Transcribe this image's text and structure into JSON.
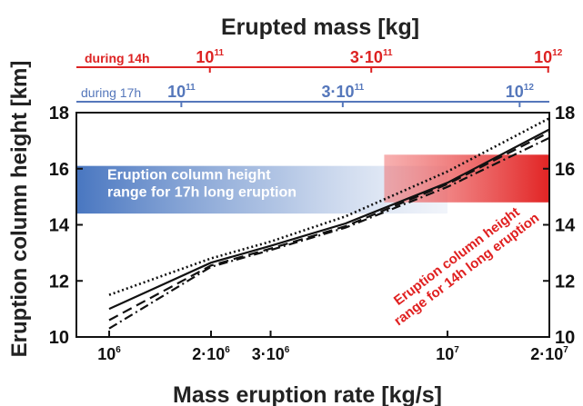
{
  "chart_data": {
    "type": "line",
    "title": "Erupted mass [kg]",
    "xlabel": "Mass eruption rate [kg/s]",
    "ylabel": "Eruption column height [km]",
    "x_scale": "log",
    "xlim": [
      800000,
      20000000
    ],
    "ylim": [
      10,
      18
    ],
    "grid": false,
    "yticks": [
      "10",
      "12",
      "14",
      "16",
      "18"
    ],
    "xticks": [
      {
        "value": 1000000,
        "base": "10",
        "exp": "6"
      },
      {
        "value": 2000000,
        "base": "2·10",
        "exp": "6"
      },
      {
        "value": 3000000,
        "base": "3·10",
        "exp": "6"
      },
      {
        "value": 10000000,
        "base": "10",
        "exp": "7"
      },
      {
        "value": 20000000,
        "base": "2·10",
        "exp": "7"
      }
    ],
    "top_axes": [
      {
        "label": "during 14h",
        "color": "#dd2222",
        "ticks": [
          {
            "value": 1984127,
            "base": "10",
            "exp": "11"
          },
          {
            "value": 5952381,
            "base": "3·10",
            "exp": "11"
          },
          {
            "value": 19841270,
            "base": "10",
            "exp": "12"
          }
        ]
      },
      {
        "label": "during 17h",
        "color": "#5577bb",
        "ticks": [
          {
            "value": 1633987,
            "base": "10",
            "exp": "11"
          },
          {
            "value": 4901961,
            "base": "3·10",
            "exp": "11"
          },
          {
            "value": 16339869,
            "base": "10",
            "exp": "12"
          }
        ]
      }
    ],
    "bands": [
      {
        "label_lines": [
          "Eruption column height",
          "range for 17h long eruption"
        ],
        "color": "#4a78c0",
        "x_range": [
          800000,
          10000000
        ],
        "y_range": [
          14.4,
          16.1
        ]
      },
      {
        "label_lines": [
          "Eruption column height",
          "range for 14h long eruption"
        ],
        "color": "#e53030",
        "x_range": [
          6500000,
          20000000
        ],
        "y_range": [
          14.8,
          16.5
        ]
      }
    ],
    "series": [
      {
        "style": "dotted",
        "x": [
          1000000,
          2000000,
          3000000,
          5000000,
          10000000,
          20000000
        ],
        "y": [
          11.5,
          12.8,
          13.4,
          14.3,
          15.9,
          17.8
        ]
      },
      {
        "style": "solid",
        "x": [
          1000000,
          2000000,
          3000000,
          5000000,
          10000000,
          20000000
        ],
        "y": [
          11.0,
          12.65,
          13.25,
          14.05,
          15.5,
          17.4
        ]
      },
      {
        "style": "dashed",
        "x": [
          1000000,
          2000000,
          3000000,
          5000000,
          10000000,
          20000000
        ],
        "y": [
          10.6,
          12.55,
          13.15,
          13.95,
          15.45,
          17.3
        ]
      },
      {
        "style": "dashdot",
        "x": [
          1000000,
          2000000,
          3000000,
          5000000,
          10000000,
          20000000
        ],
        "y": [
          10.3,
          12.5,
          13.1,
          13.9,
          15.35,
          17.1
        ]
      }
    ]
  }
}
